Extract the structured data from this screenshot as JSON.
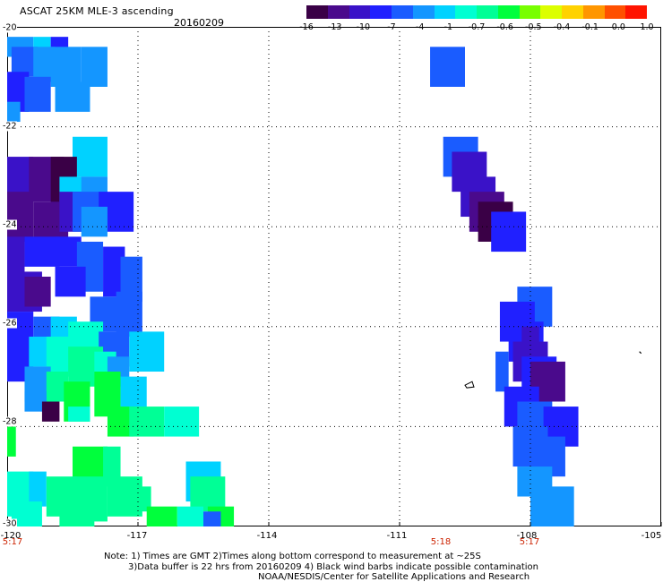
{
  "header": {
    "title": "ASCAT 25KM MLE-3 ascending",
    "date": "20160209"
  },
  "colorbar": {
    "colors": [
      "#3a0046",
      "#4a0a8c",
      "#3a12c8",
      "#2020ff",
      "#1a5cff",
      "#1496ff",
      "#00d2ff",
      "#00ffd2",
      "#00ff96",
      "#00ff3c",
      "#78ff00",
      "#dcff00",
      "#ffd200",
      "#ff9600",
      "#ff5000",
      "#ff1400"
    ],
    "labels": [
      "-16",
      "-13",
      "-10",
      "-7",
      "-4",
      "-1",
      "-0.7",
      "-0.6",
      "-0.5",
      "-0.4",
      "-0.1",
      "0.0",
      "1.0"
    ]
  },
  "axes": {
    "x_ticks": [
      "-120",
      "-117",
      "-114",
      "-111",
      "-108",
      "-105"
    ],
    "y_ticks": [
      "-20",
      "-22",
      "-24",
      "-26",
      "-28",
      "-30"
    ]
  },
  "times": [
    {
      "label": "5:17",
      "lon": -120.0
    },
    {
      "label": "5:18",
      "lon": -109.8
    },
    {
      "label": "5:17",
      "lon": -107.8
    }
  ],
  "notes": {
    "line1": "Note: 1) Times are GMT 2)Times along bottom correspond to measurement at ~25S",
    "line2": "3)Data buffer is 22 hrs from 20160209 4) Black wind barbs indicate possible contamination",
    "line3": "NOAA/NESDIS/Center for Satellite Applications and Research"
  },
  "map_data": {
    "lon_range": [
      -120,
      -105
    ],
    "lat_range": [
      -30,
      -20
    ],
    "cells": [
      {
        "lon": -120.0,
        "lat": -20.2,
        "w": 0.6,
        "h": 0.4,
        "color": "#1496ff"
      },
      {
        "lon": -119.4,
        "lat": -20.2,
        "w": 0.4,
        "h": 0.3,
        "color": "#00d2ff"
      },
      {
        "lon": -119.0,
        "lat": -20.2,
        "w": 0.4,
        "h": 0.3,
        "color": "#2020ff"
      },
      {
        "lon": -119.9,
        "lat": -20.4,
        "w": 0.6,
        "h": 0.6,
        "color": "#1a5cff"
      },
      {
        "lon": -119.4,
        "lat": -20.4,
        "w": 0.5,
        "h": 0.7,
        "color": "#1496ff"
      },
      {
        "lon": -119.0,
        "lat": -20.4,
        "w": 0.7,
        "h": 0.8,
        "color": "#1496ff"
      },
      {
        "lon": -120.0,
        "lat": -20.9,
        "w": 0.5,
        "h": 0.8,
        "color": "#2020ff"
      },
      {
        "lon": -119.6,
        "lat": -21.0,
        "w": 0.6,
        "h": 0.7,
        "color": "#1a5cff"
      },
      {
        "lon": -118.3,
        "lat": -20.4,
        "w": 0.6,
        "h": 0.8,
        "color": "#1496ff"
      },
      {
        "lon": -118.9,
        "lat": -21.1,
        "w": 0.8,
        "h": 0.6,
        "color": "#1496ff"
      },
      {
        "lon": -120.0,
        "lat": -21.5,
        "w": 0.3,
        "h": 0.4,
        "color": "#1496ff"
      },
      {
        "lon": -118.5,
        "lat": -22.2,
        "w": 0.8,
        "h": 0.8,
        "color": "#00d2ff"
      },
      {
        "lon": -120.0,
        "lat": -22.6,
        "w": 0.6,
        "h": 0.9,
        "color": "#3a12c8"
      },
      {
        "lon": -119.5,
        "lat": -22.6,
        "w": 0.8,
        "h": 0.9,
        "color": "#4a0a8c"
      },
      {
        "lon": -119.0,
        "lat": -22.6,
        "w": 0.6,
        "h": 1.0,
        "color": "#3a0046"
      },
      {
        "lon": -118.8,
        "lat": -23.0,
        "w": 0.8,
        "h": 0.6,
        "color": "#00d2ff"
      },
      {
        "lon": -118.3,
        "lat": -23.0,
        "w": 0.6,
        "h": 0.5,
        "color": "#1496ff"
      },
      {
        "lon": -120.0,
        "lat": -23.3,
        "w": 0.6,
        "h": 1.0,
        "color": "#4a0a8c"
      },
      {
        "lon": -119.4,
        "lat": -23.5,
        "w": 0.8,
        "h": 0.8,
        "color": "#4a0a8c"
      },
      {
        "lon": -118.8,
        "lat": -23.3,
        "w": 0.5,
        "h": 0.8,
        "color": "#3a12c8"
      },
      {
        "lon": -118.5,
        "lat": -23.3,
        "w": 0.8,
        "h": 0.8,
        "color": "#1a5cff"
      },
      {
        "lon": -117.9,
        "lat": -23.3,
        "w": 0.8,
        "h": 0.8,
        "color": "#2020ff"
      },
      {
        "lon": -118.3,
        "lat": -23.6,
        "w": 0.6,
        "h": 0.6,
        "color": "#1496ff"
      },
      {
        "lon": -120.0,
        "lat": -24.2,
        "w": 0.4,
        "h": 0.8,
        "color": "#3a12c8"
      },
      {
        "lon": -119.6,
        "lat": -24.2,
        "w": 0.8,
        "h": 0.6,
        "color": "#2020ff"
      },
      {
        "lon": -118.9,
        "lat": -24.2,
        "w": 0.6,
        "h": 0.6,
        "color": "#2020ff"
      },
      {
        "lon": -118.4,
        "lat": -24.3,
        "w": 0.6,
        "h": 1.0,
        "color": "#1a5cff"
      },
      {
        "lon": -117.8,
        "lat": -24.4,
        "w": 0.5,
        "h": 1.0,
        "color": "#2020ff"
      },
      {
        "lon": -117.4,
        "lat": -24.6,
        "w": 0.5,
        "h": 0.9,
        "color": "#1a5cff"
      },
      {
        "lon": -120.0,
        "lat": -24.9,
        "w": 0.8,
        "h": 0.8,
        "color": "#3a12c8"
      },
      {
        "lon": -119.6,
        "lat": -25.0,
        "w": 0.6,
        "h": 0.6,
        "color": "#4a0a8c"
      },
      {
        "lon": -118.9,
        "lat": -24.8,
        "w": 0.7,
        "h": 0.6,
        "color": "#2020ff"
      },
      {
        "lon": -118.1,
        "lat": -25.4,
        "w": 0.8,
        "h": 0.7,
        "color": "#1a5cff"
      },
      {
        "lon": -117.5,
        "lat": -25.3,
        "w": 0.6,
        "h": 0.9,
        "color": "#1a5cff"
      },
      {
        "lon": -120.0,
        "lat": -25.7,
        "w": 0.6,
        "h": 0.6,
        "color": "#2020ff"
      },
      {
        "lon": -119.4,
        "lat": -25.8,
        "w": 0.6,
        "h": 0.5,
        "color": "#1a5cff"
      },
      {
        "lon": -119.0,
        "lat": -25.8,
        "w": 0.6,
        "h": 0.5,
        "color": "#00d2ff"
      },
      {
        "lon": -118.6,
        "lat": -25.9,
        "w": 0.8,
        "h": 0.6,
        "color": "#00ffd2"
      },
      {
        "lon": -117.9,
        "lat": -26.1,
        "w": 0.7,
        "h": 0.7,
        "color": "#1a5cff"
      },
      {
        "lon": -117.2,
        "lat": -26.1,
        "w": 0.8,
        "h": 0.8,
        "color": "#00d2ff"
      },
      {
        "lon": -120.0,
        "lat": -26.2,
        "w": 0.6,
        "h": 0.9,
        "color": "#2020ff"
      },
      {
        "lon": -119.5,
        "lat": -26.2,
        "w": 0.6,
        "h": 0.6,
        "color": "#00d2ff"
      },
      {
        "lon": -119.1,
        "lat": -26.2,
        "w": 0.6,
        "h": 0.8,
        "color": "#00ffd2"
      },
      {
        "lon": -118.6,
        "lat": -26.4,
        "w": 0.8,
        "h": 0.8,
        "color": "#00ff96"
      },
      {
        "lon": -118.0,
        "lat": -26.5,
        "w": 0.5,
        "h": 0.6,
        "color": "#00ffd2"
      },
      {
        "lon": -117.7,
        "lat": -26.6,
        "w": 0.5,
        "h": 0.6,
        "color": "#1496ff"
      },
      {
        "lon": -119.6,
        "lat": -26.8,
        "w": 0.6,
        "h": 0.7,
        "color": "#1496ff"
      },
      {
        "lon": -119.1,
        "lat": -26.9,
        "w": 0.5,
        "h": 0.6,
        "color": "#00ff96"
      },
      {
        "lon": -118.7,
        "lat": -27.1,
        "w": 0.6,
        "h": 0.8,
        "color": "#00ff3c"
      },
      {
        "lon": -118.0,
        "lat": -26.9,
        "w": 0.6,
        "h": 0.9,
        "color": "#00ff3c"
      },
      {
        "lon": -117.4,
        "lat": -27.0,
        "w": 0.6,
        "h": 0.7,
        "color": "#00d2ff"
      },
      {
        "lon": -119.6,
        "lat": -27.3,
        "w": 0.5,
        "h": 0.4,
        "color": "#1496ff"
      },
      {
        "lon": -119.2,
        "lat": -27.5,
        "w": 0.4,
        "h": 0.4,
        "color": "#3a0046"
      },
      {
        "lon": -118.6,
        "lat": -27.6,
        "w": 0.5,
        "h": 0.3,
        "color": "#00ffd2"
      },
      {
        "lon": -117.7,
        "lat": -27.6,
        "w": 0.6,
        "h": 0.6,
        "color": "#00ff3c"
      },
      {
        "lon": -117.2,
        "lat": -27.6,
        "w": 0.8,
        "h": 0.6,
        "color": "#00ff96"
      },
      {
        "lon": -116.4,
        "lat": -27.6,
        "w": 0.8,
        "h": 0.6,
        "color": "#00ffd2"
      },
      {
        "lon": -120.0,
        "lat": -27.9,
        "w": 0.2,
        "h": 0.7,
        "color": "#00ff3c"
      },
      {
        "lon": -118.5,
        "lat": -28.4,
        "w": 0.8,
        "h": 0.8,
        "color": "#00ff3c"
      },
      {
        "lon": -117.8,
        "lat": -28.4,
        "w": 0.4,
        "h": 0.8,
        "color": "#00ff96"
      },
      {
        "lon": -115.9,
        "lat": -28.7,
        "w": 0.8,
        "h": 0.8,
        "color": "#00d2ff"
      },
      {
        "lon": -120.0,
        "lat": -28.9,
        "w": 0.6,
        "h": 0.9,
        "color": "#00ffd2"
      },
      {
        "lon": -119.5,
        "lat": -28.9,
        "w": 0.4,
        "h": 0.7,
        "color": "#00d2ff"
      },
      {
        "lon": -119.1,
        "lat": -29.0,
        "w": 0.7,
        "h": 0.8,
        "color": "#00ff96"
      },
      {
        "lon": -118.5,
        "lat": -29.0,
        "w": 0.8,
        "h": 0.9,
        "color": "#00ff96"
      },
      {
        "lon": -117.7,
        "lat": -29.0,
        "w": 0.8,
        "h": 0.8,
        "color": "#00ff96"
      },
      {
        "lon": -117.2,
        "lat": -29.2,
        "w": 0.5,
        "h": 0.5,
        "color": "#00ff96"
      },
      {
        "lon": -115.8,
        "lat": -29.0,
        "w": 0.8,
        "h": 0.7,
        "color": "#00ff96"
      },
      {
        "lon": -115.4,
        "lat": -29.6,
        "w": 0.6,
        "h": 0.4,
        "color": "#00ff3c"
      },
      {
        "lon": -119.9,
        "lat": -29.5,
        "w": 0.7,
        "h": 0.5,
        "color": "#00ffd2"
      },
      {
        "lon": -118.8,
        "lat": -29.6,
        "w": 0.8,
        "h": 0.4,
        "color": "#00ff96"
      },
      {
        "lon": -116.8,
        "lat": -29.6,
        "w": 0.7,
        "h": 0.4,
        "color": "#00ff3c"
      },
      {
        "lon": -116.1,
        "lat": -29.6,
        "w": 0.6,
        "h": 0.4,
        "color": "#00ffd2"
      },
      {
        "lon": -115.5,
        "lat": -29.7,
        "w": 0.4,
        "h": 0.3,
        "color": "#1a5cff"
      },
      {
        "lon": -110.3,
        "lat": -20.4,
        "w": 0.8,
        "h": 0.8,
        "color": "#1a5cff"
      },
      {
        "lon": -110.0,
        "lat": -22.2,
        "w": 0.8,
        "h": 0.8,
        "color": "#1a5cff"
      },
      {
        "lon": -109.8,
        "lat": -22.5,
        "w": 0.8,
        "h": 0.8,
        "color": "#3a12c8"
      },
      {
        "lon": -109.6,
        "lat": -23.0,
        "w": 0.8,
        "h": 0.8,
        "color": "#3a12c8"
      },
      {
        "lon": -109.4,
        "lat": -23.3,
        "w": 0.8,
        "h": 0.8,
        "color": "#4a0a8c"
      },
      {
        "lon": -109.2,
        "lat": -23.5,
        "w": 0.8,
        "h": 0.8,
        "color": "#3a0046"
      },
      {
        "lon": -108.9,
        "lat": -23.7,
        "w": 0.8,
        "h": 0.8,
        "color": "#2020ff"
      },
      {
        "lon": -108.3,
        "lat": -25.2,
        "w": 0.8,
        "h": 0.8,
        "color": "#1a5cff"
      },
      {
        "lon": -108.7,
        "lat": -25.5,
        "w": 0.8,
        "h": 0.8,
        "color": "#2020ff"
      },
      {
        "lon": -108.5,
        "lat": -25.9,
        "w": 0.8,
        "h": 0.8,
        "color": "#2020ff"
      },
      {
        "lon": -108.2,
        "lat": -26.0,
        "w": 0.4,
        "h": 0.5,
        "color": "#3a12c8"
      },
      {
        "lon": -108.4,
        "lat": -26.3,
        "w": 0.8,
        "h": 0.8,
        "color": "#3a12c8"
      },
      {
        "lon": -108.2,
        "lat": -26.6,
        "w": 0.8,
        "h": 0.8,
        "color": "#2020ff"
      },
      {
        "lon": -108.0,
        "lat": -26.7,
        "w": 0.8,
        "h": 0.8,
        "color": "#4a0a8c"
      },
      {
        "lon": -108.8,
        "lat": -26.5,
        "w": 0.3,
        "h": 0.8,
        "color": "#1a5cff"
      },
      {
        "lon": -108.6,
        "lat": -27.2,
        "w": 0.8,
        "h": 0.8,
        "color": "#2020ff"
      },
      {
        "lon": -108.3,
        "lat": -27.5,
        "w": 0.8,
        "h": 0.8,
        "color": "#1a5cff"
      },
      {
        "lon": -107.7,
        "lat": -27.6,
        "w": 0.8,
        "h": 0.8,
        "color": "#2020ff"
      },
      {
        "lon": -108.4,
        "lat": -28.0,
        "w": 0.8,
        "h": 0.8,
        "color": "#1a5cff"
      },
      {
        "lon": -108.0,
        "lat": -28.2,
        "w": 0.8,
        "h": 0.8,
        "color": "#1a5cff"
      },
      {
        "lon": -108.3,
        "lat": -28.8,
        "w": 0.8,
        "h": 0.6,
        "color": "#1496ff"
      },
      {
        "lon": -108.0,
        "lat": -29.2,
        "w": 1.0,
        "h": 0.8,
        "color": "#1496ff"
      }
    ],
    "island_marker": {
      "lon": -109.5,
      "lat": -27.1
    },
    "barb_marker": {
      "lon": -105.5,
      "lat": -26.5
    }
  }
}
